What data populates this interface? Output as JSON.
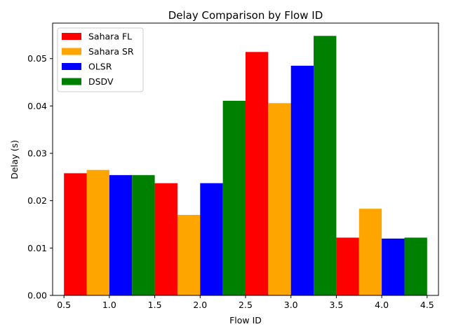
{
  "chart_data": {
    "type": "bar",
    "title": "Delay Comparison by Flow ID",
    "xlabel": "Flow ID",
    "ylabel": "Delay (s)",
    "groups": [
      1,
      2,
      3,
      4
    ],
    "bar_width": 0.25,
    "xlim": [
      0.375,
      4.625
    ],
    "ylim": [
      0,
      0.0575
    ],
    "xticks": [
      "0.5",
      "1.0",
      "1.5",
      "2.0",
      "2.5",
      "3.0",
      "3.5",
      "4.0",
      "4.5"
    ],
    "yticks": [
      "0.00",
      "0.01",
      "0.02",
      "0.03",
      "0.04",
      "0.05"
    ],
    "legend_position": "upper-left",
    "grid": false,
    "series": [
      {
        "name": "Sahara FL",
        "color": "#ff0000",
        "values": [
          0.0258,
          0.0237,
          0.0514,
          0.0122
        ]
      },
      {
        "name": "Sahara SR",
        "color": "#ffa500",
        "values": [
          0.0265,
          0.017,
          0.0406,
          0.0183
        ]
      },
      {
        "name": "OLSR",
        "color": "#0000ff",
        "values": [
          0.0254,
          0.0237,
          0.0485,
          0.012
        ]
      },
      {
        "name": "DSDV",
        "color": "#008000",
        "values": [
          0.0254,
          0.0411,
          0.0548,
          0.0122
        ]
      }
    ]
  }
}
